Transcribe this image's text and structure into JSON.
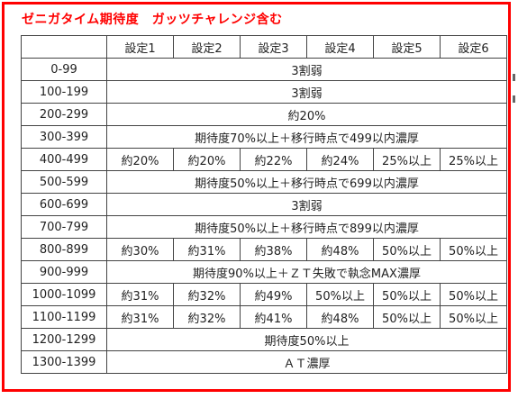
{
  "title": "ゼニガタイム期待度　ガッツチャレンジ含む",
  "colors": {
    "accent": "#ff0000",
    "border": "#444444",
    "text": "#222222"
  },
  "headers": [
    "",
    "設定1",
    "設定2",
    "設定3",
    "設定4",
    "設定5",
    "設定6"
  ],
  "rows": [
    {
      "range": "0-99",
      "merged": "3割弱"
    },
    {
      "range": "100-199",
      "merged": "3割弱"
    },
    {
      "range": "200-299",
      "merged": "約20%"
    },
    {
      "range": "300-399",
      "merged": "期待度70%以上＋移行時点で499以内濃厚"
    },
    {
      "range": "400-499",
      "cells": [
        "約20%",
        "約20%",
        "約22%",
        "約24%",
        "25%以上",
        "25%以上"
      ]
    },
    {
      "range": "500-599",
      "merged": "期待度50%以上＋移行時点で699以内濃厚"
    },
    {
      "range": "600-699",
      "merged": "3割弱"
    },
    {
      "range": "700-799",
      "merged": "期待度50%以上＋移行時点で899以内濃厚"
    },
    {
      "range": "800-899",
      "cells": [
        "約30%",
        "約31%",
        "約38%",
        "約48%",
        "50%以上",
        "50%以上"
      ]
    },
    {
      "range": "900-999",
      "merged": "期待度90%以上＋ＺＴ失敗で執念MAX濃厚"
    },
    {
      "range": "1000-1099",
      "cells": [
        "約31%",
        "約32%",
        "約49%",
        "50%以上",
        "50%以上",
        "50%以上"
      ]
    },
    {
      "range": "1100-1199",
      "cells": [
        "約31%",
        "約32%",
        "約41%",
        "約48%",
        "50%以上",
        "50%以上"
      ]
    },
    {
      "range": "1200-1299",
      "merged": "期待度50%以上"
    },
    {
      "range": "1300-1399",
      "merged": "ＡＴ濃厚"
    }
  ]
}
